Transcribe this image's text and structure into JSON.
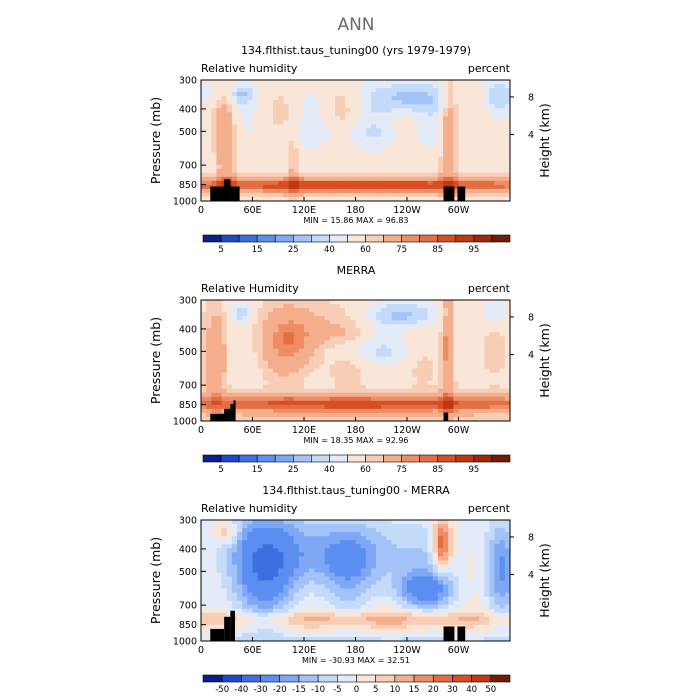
{
  "figure_title": "ANN",
  "chart_data": [
    {
      "type": "heatmap",
      "title": "134.flthist.taus_tuning00 (yrs 1979-1979)",
      "left_label": "Relative humidity",
      "right_label": "percent",
      "ylabel": "Pressure (mb)",
      "ylabel_right": "Height (km)",
      "y_ticks": [
        "300",
        "400",
        "500",
        "700",
        "850",
        "1000"
      ],
      "y_right_ticks": [
        "8",
        "4"
      ],
      "x_ticks": [
        "0",
        "60E",
        "120E",
        "180",
        "120W",
        "60W"
      ],
      "ylim": [
        1000,
        300
      ],
      "stats": "MIN =   15.86   MAX =   96.83",
      "colorbar": {
        "labels": [
          "5",
          "15",
          "25",
          "40",
          "60",
          "75",
          "85",
          "95"
        ],
        "colors": [
          "#0a1f8c",
          "#1f49c8",
          "#3d6fe0",
          "#5b8ef0",
          "#7ea8f5",
          "#a3c3f8",
          "#c4daf9",
          "#e2ebf7",
          "#f9e6d9",
          "#f7cdb5",
          "#f4ae8c",
          "#ee8c64",
          "#e46e44",
          "#d74e25",
          "#c03812",
          "#9e2808",
          "#731c06"
        ],
        "type": "seq"
      }
    },
    {
      "type": "heatmap",
      "title": "MERRA",
      "left_label": "Relative Humidity",
      "right_label": "percent",
      "ylabel": "Pressure (mb)",
      "ylabel_right": "Height (km)",
      "y_ticks": [
        "300",
        "400",
        "500",
        "700",
        "850",
        "1000"
      ],
      "y_right_ticks": [
        "8",
        "4"
      ],
      "x_ticks": [
        "0",
        "60E",
        "120E",
        "180",
        "120W",
        "60W"
      ],
      "ylim": [
        1000,
        300
      ],
      "stats": "MIN =   18.35   MAX =   92.96",
      "colorbar": {
        "labels": [
          "5",
          "15",
          "25",
          "40",
          "60",
          "75",
          "85",
          "95"
        ],
        "colors": [
          "#0a1f8c",
          "#1f49c8",
          "#3d6fe0",
          "#5b8ef0",
          "#7ea8f5",
          "#a3c3f8",
          "#c4daf9",
          "#e2ebf7",
          "#f9e6d9",
          "#f7cdb5",
          "#f4ae8c",
          "#ee8c64",
          "#e46e44",
          "#d74e25",
          "#c03812",
          "#9e2808",
          "#731c06"
        ],
        "type": "seq"
      }
    },
    {
      "type": "heatmap",
      "title": "134.flthist.taus_tuning00 - MERRA",
      "left_label": "Relative humidity",
      "right_label": "percent",
      "ylabel": "Pressure (mb)",
      "ylabel_right": "Height (km)",
      "y_ticks": [
        "300",
        "400",
        "500",
        "700",
        "850",
        "1000"
      ],
      "y_right_ticks": [
        "8",
        "4"
      ],
      "x_ticks": [
        "0",
        "60E",
        "120E",
        "180",
        "120W",
        "60W"
      ],
      "ylim": [
        1000,
        300
      ],
      "stats": "MIN =  -30.93   MAX =   32.51",
      "colorbar": {
        "labels": [
          "-50",
          "-40",
          "-30",
          "-20",
          "-15",
          "-10",
          "-5",
          "0",
          "5",
          "10",
          "15",
          "20",
          "30",
          "40",
          "50"
        ],
        "colors": [
          "#0a1f8c",
          "#1f49c8",
          "#3d6fe0",
          "#5b8ef0",
          "#7ea8f5",
          "#a3c3f8",
          "#c4daf9",
          "#e2ebf7",
          "#f9e6d9",
          "#f7cdb5",
          "#f4ae8c",
          "#ee8c64",
          "#e46e44",
          "#d74e25",
          "#c03812",
          "#731c06"
        ],
        "type": "diff"
      }
    }
  ]
}
